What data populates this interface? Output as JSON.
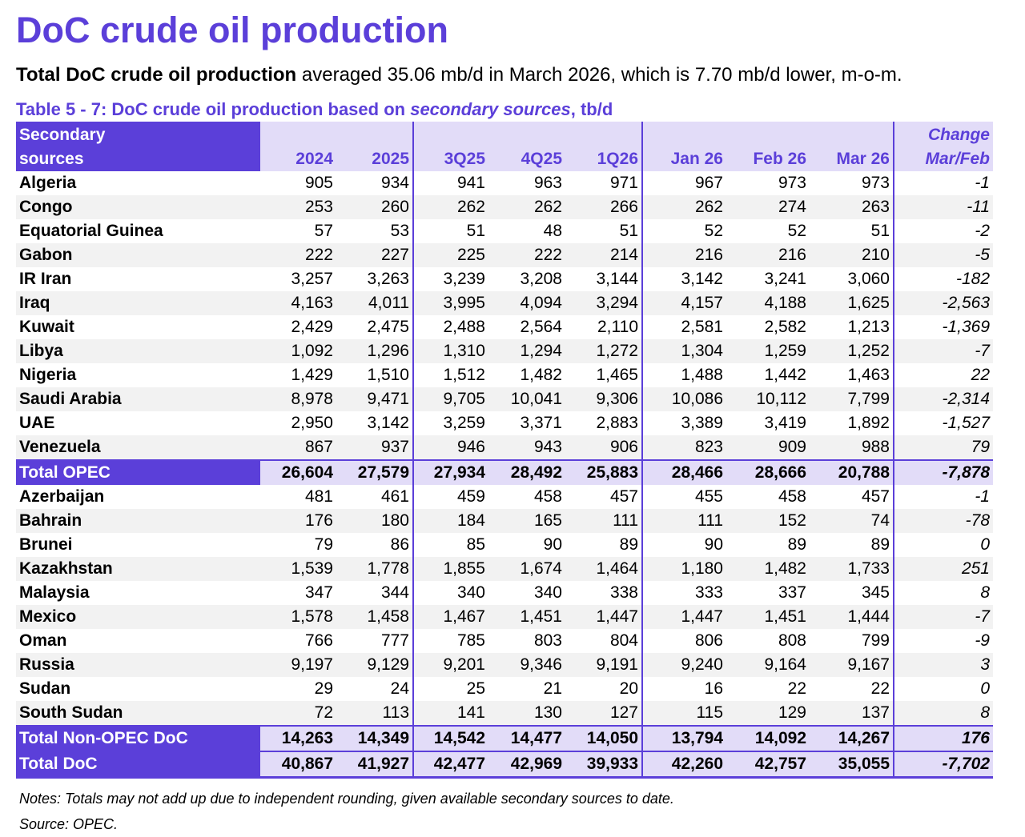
{
  "title": "DoC crude oil production",
  "summary": {
    "bold": "Total DoC crude oil production",
    "text": "averaged 35.06 mb/d in March 2026, which is 7.70 mb/d lower, m-o-m."
  },
  "table": {
    "caption": {
      "prefix": "Table 5 - 7: DoC crude oil production based on",
      "italic": "secondary sources",
      "suffix": ", tb/d"
    },
    "header": {
      "label": [
        "Secondary",
        "sources"
      ],
      "columns": [
        "2024",
        "2025",
        "3Q25",
        "4Q25",
        "1Q26",
        "Jan 26",
        "Feb 26",
        "Mar 26"
      ],
      "change": [
        "Change",
        "Mar/Feb"
      ]
    },
    "opec_rows": [
      [
        "Algeria",
        "905",
        "934",
        "941",
        "963",
        "971",
        "967",
        "973",
        "973",
        "-1"
      ],
      [
        "Congo",
        "253",
        "260",
        "262",
        "262",
        "266",
        "262",
        "274",
        "263",
        "-11"
      ],
      [
        "Equatorial Guinea",
        "57",
        "53",
        "51",
        "48",
        "51",
        "52",
        "52",
        "51",
        "-2"
      ],
      [
        "Gabon",
        "222",
        "227",
        "225",
        "222",
        "214",
        "216",
        "216",
        "210",
        "-5"
      ],
      [
        "IR Iran",
        "3,257",
        "3,263",
        "3,239",
        "3,208",
        "3,144",
        "3,142",
        "3,241",
        "3,060",
        "-182"
      ],
      [
        "Iraq",
        "4,163",
        "4,011",
        "3,995",
        "4,094",
        "3,294",
        "4,157",
        "4,188",
        "1,625",
        "-2,563"
      ],
      [
        "Kuwait",
        "2,429",
        "2,475",
        "2,488",
        "2,564",
        "2,110",
        "2,581",
        "2,582",
        "1,213",
        "-1,369"
      ],
      [
        "Libya",
        "1,092",
        "1,296",
        "1,310",
        "1,294",
        "1,272",
        "1,304",
        "1,259",
        "1,252",
        "-7"
      ],
      [
        "Nigeria",
        "1,429",
        "1,510",
        "1,512",
        "1,482",
        "1,465",
        "1,488",
        "1,442",
        "1,463",
        "22"
      ],
      [
        "Saudi Arabia",
        "8,978",
        "9,471",
        "9,705",
        "10,041",
        "9,306",
        "10,086",
        "10,112",
        "7,799",
        "-2,314"
      ],
      [
        "UAE",
        "2,950",
        "3,142",
        "3,259",
        "3,371",
        "2,883",
        "3,389",
        "3,419",
        "1,892",
        "-1,527"
      ],
      [
        "Venezuela",
        "867",
        "937",
        "946",
        "943",
        "906",
        "823",
        "909",
        "988",
        "79"
      ]
    ],
    "opec_total": [
      "Total  OPEC",
      "26,604",
      "27,579",
      "27,934",
      "28,492",
      "25,883",
      "28,466",
      "28,666",
      "20,788",
      "-7,878"
    ],
    "non_opec_rows": [
      [
        "Azerbaijan",
        "481",
        "461",
        "459",
        "458",
        "457",
        "455",
        "458",
        "457",
        "-1"
      ],
      [
        "Bahrain",
        "176",
        "180",
        "184",
        "165",
        "111",
        "111",
        "152",
        "74",
        "-78"
      ],
      [
        "Brunei",
        "79",
        "86",
        "85",
        "90",
        "89",
        "90",
        "89",
        "89",
        "0"
      ],
      [
        "Kazakhstan",
        "1,539",
        "1,778",
        "1,855",
        "1,674",
        "1,464",
        "1,180",
        "1,482",
        "1,733",
        "251"
      ],
      [
        "Malaysia",
        "347",
        "344",
        "340",
        "340",
        "338",
        "333",
        "337",
        "345",
        "8"
      ],
      [
        "Mexico",
        "1,578",
        "1,458",
        "1,467",
        "1,451",
        "1,447",
        "1,447",
        "1,451",
        "1,444",
        "-7"
      ],
      [
        "Oman",
        "766",
        "777",
        "785",
        "803",
        "804",
        "806",
        "808",
        "799",
        "-9"
      ],
      [
        "Russia",
        "9,197",
        "9,129",
        "9,201",
        "9,346",
        "9,191",
        "9,240",
        "9,164",
        "9,167",
        "3"
      ],
      [
        "Sudan",
        "29",
        "24",
        "25",
        "21",
        "20",
        "16",
        "22",
        "22",
        "0"
      ],
      [
        "South Sudan",
        "72",
        "113",
        "141",
        "130",
        "127",
        "115",
        "129",
        "137",
        "8"
      ]
    ],
    "non_opec_total": [
      "Total Non-OPEC DoC",
      "14,263",
      "14,349",
      "14,542",
      "14,477",
      "14,050",
      "13,794",
      "14,092",
      "14,267",
      "176"
    ],
    "doc_total": [
      "Total DoC",
      "40,867",
      "41,927",
      "42,477",
      "42,969",
      "39,933",
      "42,260",
      "42,757",
      "35,055",
      "-7,702"
    ]
  },
  "notes": "Notes: Totals may not add up due to independent rounding, given available secondary sources to date.",
  "source": "Source: OPEC."
}
